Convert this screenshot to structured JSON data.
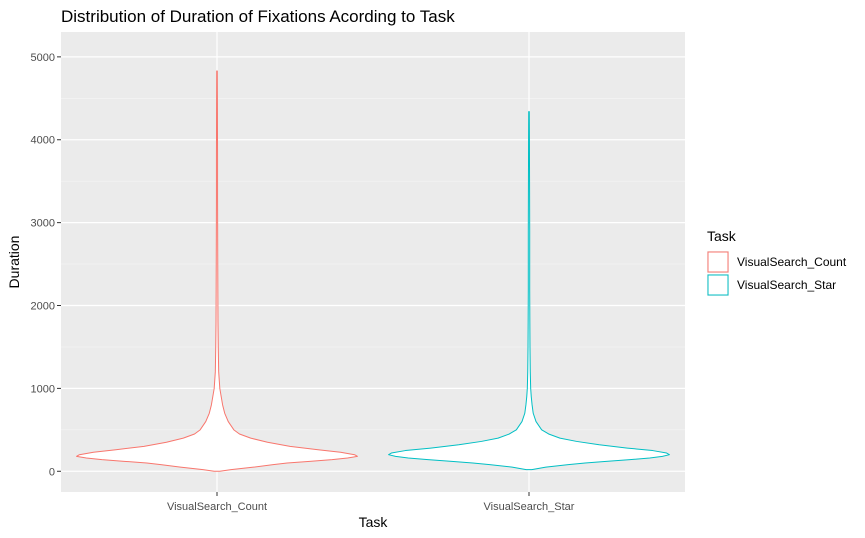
{
  "chart_data": {
    "type": "violin",
    "title": "Distribution of Duration of Fixations Acording to Task",
    "xlabel": "Task",
    "ylabel": "Duration",
    "ylim": [
      -250,
      5300
    ],
    "yticks": [
      0,
      1000,
      2000,
      3000,
      4000,
      5000
    ],
    "ytick_labels": [
      "0",
      "1000",
      "2000",
      "3000",
      "4000",
      "5000"
    ],
    "categories": [
      "VisualSearch_Count",
      "VisualSearch_Star"
    ],
    "grid": true,
    "legend": {
      "title": "Task",
      "placement": "right",
      "entries": [
        "VisualSearch_Count",
        "VisualSearch_Star"
      ]
    },
    "series": [
      {
        "name": "VisualSearch_Count",
        "color": "#F8766D",
        "min": 0,
        "max": 4830,
        "profile": [
          [
            0,
            0.02
          ],
          [
            20,
            0.1
          ],
          [
            50,
            0.26
          ],
          [
            80,
            0.4
          ],
          [
            100,
            0.5
          ],
          [
            120,
            0.66
          ],
          [
            140,
            0.82
          ],
          [
            160,
            0.93
          ],
          [
            180,
            1.0
          ],
          [
            200,
            0.98
          ],
          [
            230,
            0.88
          ],
          [
            260,
            0.72
          ],
          [
            300,
            0.52
          ],
          [
            350,
            0.36
          ],
          [
            400,
            0.24
          ],
          [
            450,
            0.16
          ],
          [
            500,
            0.12
          ],
          [
            600,
            0.08
          ],
          [
            700,
            0.055
          ],
          [
            800,
            0.04
          ],
          [
            900,
            0.03
          ],
          [
            1000,
            0.02
          ],
          [
            1200,
            0.012
          ],
          [
            1500,
            0.009
          ],
          [
            1800,
            0.007
          ],
          [
            2200,
            0.006
          ],
          [
            2700,
            0.005
          ],
          [
            3300,
            0.004
          ],
          [
            3800,
            0.004
          ],
          [
            4400,
            0.003
          ],
          [
            4830,
            0.002
          ]
        ]
      },
      {
        "name": "VisualSearch_Star",
        "color": "#00BFC4",
        "min": 20,
        "max": 4340,
        "profile": [
          [
            20,
            0.02
          ],
          [
            50,
            0.12
          ],
          [
            80,
            0.28
          ],
          [
            100,
            0.4
          ],
          [
            120,
            0.55
          ],
          [
            140,
            0.72
          ],
          [
            160,
            0.86
          ],
          [
            180,
            0.95
          ],
          [
            200,
            1.0
          ],
          [
            220,
            0.98
          ],
          [
            250,
            0.88
          ],
          [
            280,
            0.7
          ],
          [
            320,
            0.5
          ],
          [
            360,
            0.34
          ],
          [
            400,
            0.22
          ],
          [
            450,
            0.14
          ],
          [
            500,
            0.09
          ],
          [
            600,
            0.05
          ],
          [
            700,
            0.03
          ],
          [
            800,
            0.022
          ],
          [
            900,
            0.016
          ],
          [
            1000,
            0.012
          ],
          [
            1200,
            0.009
          ],
          [
            1500,
            0.007
          ],
          [
            1800,
            0.006
          ],
          [
            2200,
            0.005
          ],
          [
            2900,
            0.005
          ],
          [
            3500,
            0.004
          ],
          [
            4000,
            0.003
          ],
          [
            4340,
            0.002
          ]
        ]
      }
    ]
  }
}
